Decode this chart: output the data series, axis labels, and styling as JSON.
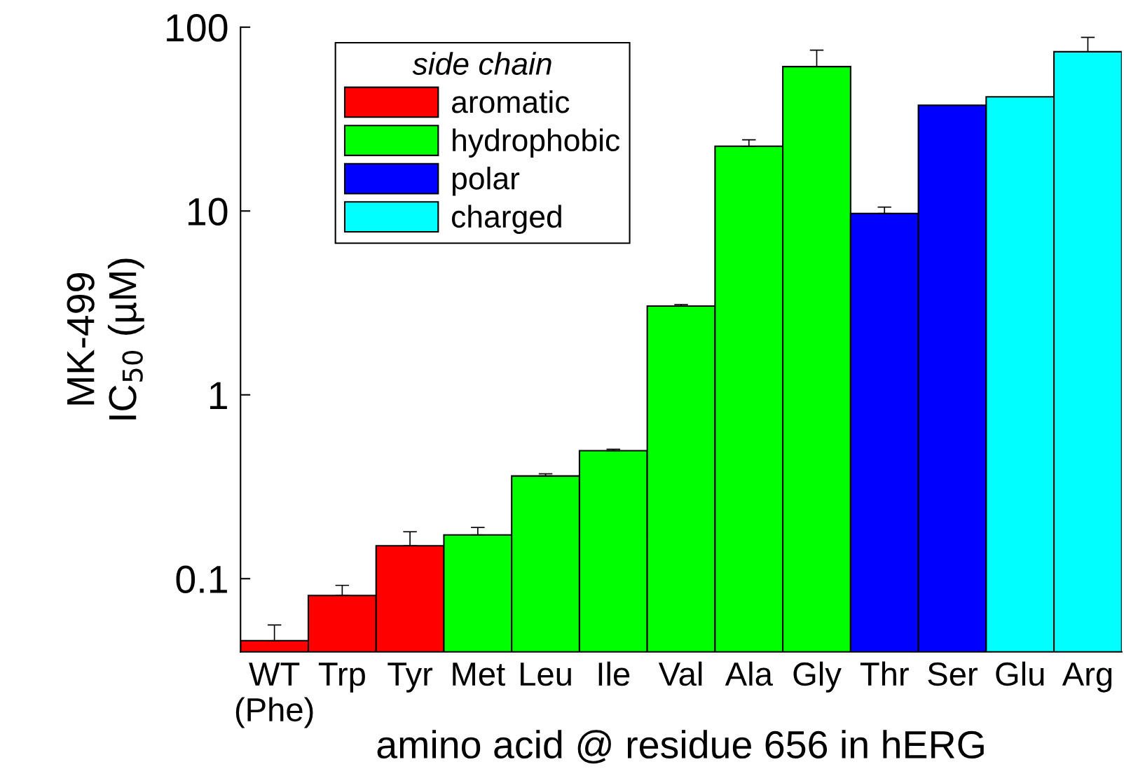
{
  "chart_data": {
    "type": "bar",
    "xlabel": "amino acid @ residue 656 in hERG",
    "ylabel": "MK-499\nIC$_{50}$ (µM)",
    "legend_title": "side chain",
    "categories": [
      "WT\n(Phe)",
      "Trp",
      "Tyr",
      "Met",
      "Leu",
      "Ile",
      "Val",
      "Ala",
      "Gly",
      "Thr",
      "Ser",
      "Glu",
      "Arg"
    ],
    "series": [
      {
        "name": "aromatic",
        "color": "#ff0000",
        "values": [
          0.046,
          0.081,
          0.151,
          null,
          null,
          null,
          null,
          null,
          null,
          null,
          null,
          null,
          null
        ],
        "errors": [
          [
            0.046,
            0.056
          ],
          [
            0.081,
            0.092
          ],
          [
            0.151,
            0.18
          ],
          null,
          null,
          null,
          null,
          null,
          null,
          null,
          null,
          null,
          null
        ]
      },
      {
        "name": "hydrophobic",
        "color": "#00ff00",
        "values": [
          null,
          null,
          null,
          0.173,
          0.362,
          0.497,
          3.04,
          22.5,
          61,
          null,
          null,
          null,
          null
        ],
        "errors": [
          null,
          null,
          null,
          [
            0.173,
            0.19
          ],
          [
            0.362,
            0.372
          ],
          [
            0.497,
            0.506
          ],
          [
            3.04,
            3.1
          ],
          [
            22.5,
            24.4
          ],
          [
            61,
            75
          ],
          null,
          null,
          null,
          null
        ]
      },
      {
        "name": "polar",
        "color": "#0000ff",
        "values": [
          null,
          null,
          null,
          null,
          null,
          null,
          null,
          null,
          null,
          9.7,
          37.6,
          null,
          null
        ],
        "errors": [
          null,
          null,
          null,
          null,
          null,
          null,
          null,
          null,
          null,
          [
            9.7,
            10.5
          ],
          null,
          null,
          null
        ]
      },
      {
        "name": "charged",
        "color": "#00ffff",
        "values": [
          null,
          null,
          null,
          null,
          null,
          null,
          null,
          null,
          null,
          null,
          null,
          41.8,
          73.5
        ],
        "errors": [
          null,
          null,
          null,
          null,
          null,
          null,
          null,
          null,
          null,
          null,
          null,
          null,
          [
            73.5,
            88
          ]
        ]
      }
    ],
    "log": true,
    "ylim": [
      0.04,
      100
    ],
    "yticks": [
      0.1,
      1,
      10,
      100
    ],
    "grid": false,
    "legend": "top left"
  }
}
